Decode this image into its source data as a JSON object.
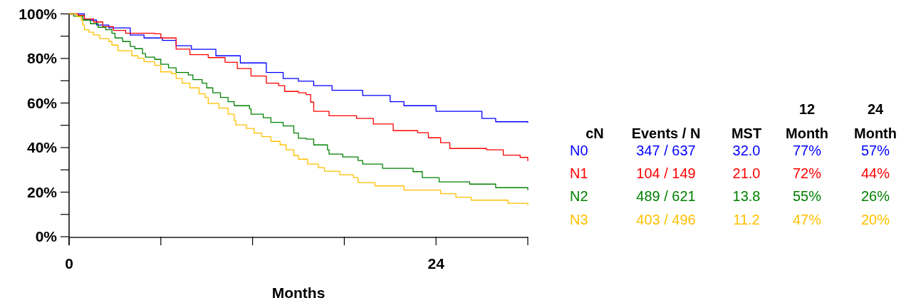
{
  "chart_data": {
    "type": "step",
    "xlabel": "Months",
    "legend_title": "cN",
    "legend": "right",
    "marker": "none",
    "line_style": "solid",
    "grid": false,
    "xlim": [
      0,
      30
    ],
    "xticks": [
      0,
      {
        "value": 6,
        "label": null
      },
      {
        "value": 12,
        "label": null
      },
      {
        "value": 18,
        "label": null
      },
      24,
      {
        "value": 30,
        "label": null
      }
    ],
    "ylim": [
      0,
      100
    ],
    "yticks": [
      {
        "value": 0,
        "label": "0%"
      },
      {
        "value": 10,
        "label": null
      },
      {
        "value": 20,
        "label": "20%"
      },
      {
        "value": 30,
        "label": null
      },
      {
        "value": 40,
        "label": "40%"
      },
      {
        "value": 50,
        "label": null
      },
      {
        "value": 60,
        "label": "60%"
      },
      {
        "value": 70,
        "label": null
      },
      {
        "value": 80,
        "label": "80%"
      },
      {
        "value": 90,
        "label": null
      },
      {
        "value": 100,
        "label": "100%"
      }
    ],
    "annotations": [
      "Events / N",
      "MST",
      "12 Month",
      "24 Month",
      "347 / 637",
      "32.0",
      "77%",
      "57%",
      "104 / 149",
      "21.0",
      "72%",
      "44%",
      "489 / 621",
      "13.8",
      "55%",
      "26%",
      "403 / 496",
      "11.2",
      "47%",
      "20%"
    ],
    "series": [
      {
        "name": "N0",
        "color": "#0000ff",
        "x": [
          0,
          1.0,
          1.8,
          2.6,
          4.0,
          4.9,
          6.1,
          7.0,
          8.0,
          9.6,
          11.2,
          12.9,
          14.0,
          15.0,
          16.0,
          17.2,
          19.2,
          21.0,
          21.9,
          24.0,
          27.0,
          27.9,
          30
        ],
        "values": [
          100,
          97.2,
          95,
          93.7,
          90.5,
          89.2,
          88.1,
          85.7,
          84.1,
          81.2,
          78.0,
          73.7,
          71.0,
          69.8,
          67.8,
          65.7,
          63.4,
          60.6,
          58.8,
          56.3,
          53.1,
          51.6,
          51.1
        ]
      },
      {
        "name": "N1",
        "color": "#ff0000",
        "x": [
          0,
          0.6,
          1.0,
          1.6,
          2.2,
          2.9,
          3.7,
          5.6,
          6.0,
          7.0,
          7.9,
          9.1,
          10.2,
          11.0,
          11.9,
          12.9,
          13.7,
          14.1,
          15.0,
          15.5,
          15.8,
          16.0,
          17.0,
          18.8,
          19.9,
          21.2,
          22.8,
          23.5,
          24.3,
          24.9,
          27.3,
          28.4,
          29.5,
          30
        ],
        "values": [
          100,
          99.3,
          97.7,
          96.4,
          94.3,
          92.6,
          91.3,
          91.1,
          89.2,
          84.2,
          81.7,
          80.4,
          78.3,
          75.5,
          72.1,
          68.9,
          67.8,
          65.2,
          64.6,
          63.8,
          60.4,
          56.3,
          54.3,
          53.1,
          50.6,
          47.6,
          46.7,
          44.4,
          42.2,
          39.6,
          39.0,
          36.6,
          35.6,
          33.9
        ]
      },
      {
        "name": "N2",
        "color": "#008000",
        "x": [
          0,
          0.3,
          0.9,
          1.4,
          1.9,
          2.4,
          2.8,
          3.0,
          3.5,
          4.0,
          4.3,
          4.8,
          5.0,
          5.6,
          6.0,
          6.5,
          7.0,
          7.8,
          8.1,
          8.7,
          9.0,
          9.4,
          9.9,
          10.4,
          10.8,
          11.8,
          11.9,
          12.7,
          13.2,
          14.0,
          14.7,
          15.0,
          15.5,
          16.0,
          16.9,
          17.0,
          17.9,
          18.9,
          19.2,
          20.5,
          22.5,
          23.1,
          24.2,
          26.2,
          27.9,
          30
        ],
        "values": [
          100,
          99,
          97.2,
          95.6,
          94.0,
          92.9,
          91.3,
          89.2,
          87.6,
          85.4,
          84.4,
          82.2,
          80.6,
          79.6,
          77.4,
          75.8,
          73.7,
          72.6,
          70.5,
          68.9,
          66.8,
          64.6,
          62.5,
          60.6,
          58.8,
          57.4,
          55.0,
          53.4,
          51.3,
          49.7,
          46.5,
          44.2,
          43.8,
          41.2,
          39.0,
          37.1,
          35.8,
          34.2,
          32.6,
          30.7,
          29.2,
          26.5,
          24.6,
          23.6,
          22.0,
          20.9
        ]
      },
      {
        "name": "N3",
        "color": "#ffc000",
        "x": [
          0,
          0.5,
          0.8,
          0.9,
          1.0,
          1.3,
          1.6,
          2.0,
          2.6,
          2.8,
          3.2,
          4.1,
          4.5,
          4.9,
          5.6,
          6.0,
          6.7,
          7.0,
          7.4,
          7.9,
          8.5,
          8.9,
          9.1,
          9.8,
          10.4,
          10.8,
          10.9,
          11.6,
          12.1,
          12.6,
          13.2,
          13.8,
          14.2,
          14.7,
          15.0,
          15.6,
          16.3,
          16.7,
          17.7,
          18.6,
          18.9,
          20.0,
          21.9,
          24.3,
          25.3,
          26.3,
          28.7,
          30
        ],
        "values": [
          100,
          98.8,
          97.2,
          95.0,
          92.9,
          91.8,
          90.5,
          88.9,
          87.6,
          86.0,
          83.5,
          81.2,
          80.1,
          78.5,
          76.9,
          74.0,
          73.2,
          71.0,
          68.9,
          66.8,
          64.1,
          62.5,
          59.8,
          57.7,
          55.0,
          52.1,
          50.2,
          48.6,
          46.5,
          44.9,
          42.8,
          41.2,
          39.0,
          36.4,
          34.8,
          32.6,
          31.0,
          29.4,
          27.8,
          26.5,
          24.3,
          22.8,
          20.9,
          19.3,
          17.7,
          16.4,
          15.0,
          14.0
        ]
      }
    ]
  }
}
